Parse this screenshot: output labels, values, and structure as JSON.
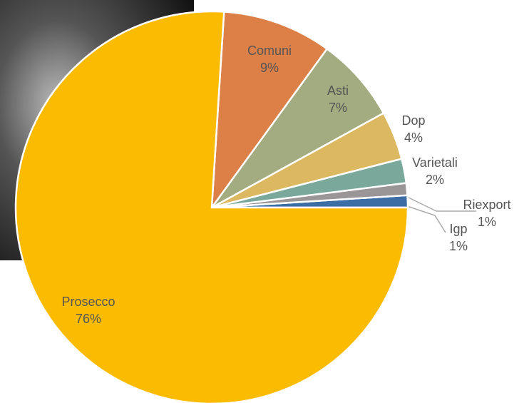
{
  "chart_data": {
    "type": "pie",
    "categories": [
      "Igp",
      "Riexport",
      "Varietali",
      "Dop",
      "Asti",
      "Comuni",
      "Prosecco"
    ],
    "values": [
      1,
      1,
      2,
      4,
      7,
      9,
      76
    ],
    "value_labels": [
      "1%",
      "1%",
      "2%",
      "4%",
      "7%",
      "9%",
      "76%"
    ],
    "colors": [
      "#3c6ea5",
      "#9a9596",
      "#7aa99c",
      "#dcb860",
      "#a3ab80",
      "#dc8048",
      "#fbbb00"
    ]
  }
}
